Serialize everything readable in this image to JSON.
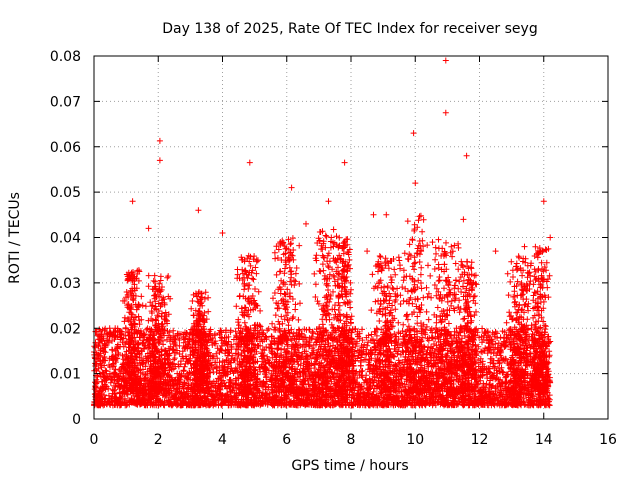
{
  "chart_data": {
    "type": "scatter",
    "title": "Day 138 of 2025, Rate Of TEC Index for receiver seyg",
    "xlabel": "GPS time / hours",
    "ylabel": "ROTI / TECUs",
    "xlim": [
      0,
      16
    ],
    "ylim": [
      0,
      0.08
    ],
    "x_ticks": [
      0,
      2,
      4,
      6,
      8,
      10,
      12,
      14,
      16
    ],
    "y_ticks": [
      0,
      0.01,
      0.02,
      0.03,
      0.04,
      0.05,
      0.06,
      0.07,
      0.08
    ],
    "x_tick_labels": [
      "0",
      "2",
      "4",
      "6",
      "8",
      "10",
      "12",
      "14",
      "16"
    ],
    "y_tick_labels": [
      "0",
      "0.01",
      "0.02",
      "0.03",
      "0.04",
      "0.05",
      "0.06",
      "0.07",
      "0.08"
    ],
    "grid": true,
    "marker": "+",
    "color": "#ff0000",
    "data_coverage_hours": [
      0,
      14.2
    ],
    "baseline_range": [
      0.003,
      0.02
    ],
    "notable_points": [
      {
        "x": 10.95,
        "y": 0.079
      },
      {
        "x": 10.95,
        "y": 0.0675
      },
      {
        "x": 9.95,
        "y": 0.063
      },
      {
        "x": 2.05,
        "y": 0.0613
      },
      {
        "x": 2.05,
        "y": 0.057
      },
      {
        "x": 11.6,
        "y": 0.058
      },
      {
        "x": 4.85,
        "y": 0.0565
      },
      {
        "x": 7.8,
        "y": 0.0565
      },
      {
        "x": 6.15,
        "y": 0.051
      },
      {
        "x": 10.0,
        "y": 0.052
      },
      {
        "x": 1.2,
        "y": 0.048
      },
      {
        "x": 7.3,
        "y": 0.048
      },
      {
        "x": 14.0,
        "y": 0.048
      },
      {
        "x": 3.25,
        "y": 0.046
      },
      {
        "x": 8.7,
        "y": 0.045
      },
      {
        "x": 9.1,
        "y": 0.045
      },
      {
        "x": 11.5,
        "y": 0.044
      },
      {
        "x": 6.6,
        "y": 0.043
      },
      {
        "x": 1.7,
        "y": 0.042
      },
      {
        "x": 4.0,
        "y": 0.041
      },
      {
        "x": 12.5,
        "y": 0.037
      },
      {
        "x": 8.5,
        "y": 0.037
      },
      {
        "x": 13.4,
        "y": 0.038
      },
      {
        "x": 14.2,
        "y": 0.04
      }
    ],
    "bursts": [
      {
        "center": 1.2,
        "width": 0.35,
        "peak": 0.033
      },
      {
        "center": 2.0,
        "width": 0.4,
        "peak": 0.032
      },
      {
        "center": 3.3,
        "width": 0.3,
        "peak": 0.028
      },
      {
        "center": 4.8,
        "width": 0.4,
        "peak": 0.036
      },
      {
        "center": 6.0,
        "width": 0.5,
        "peak": 0.04
      },
      {
        "center": 7.3,
        "width": 0.5,
        "peak": 0.042
      },
      {
        "center": 7.8,
        "width": 0.35,
        "peak": 0.04
      },
      {
        "center": 9.1,
        "width": 0.5,
        "peak": 0.036
      },
      {
        "center": 10.0,
        "width": 0.55,
        "peak": 0.045
      },
      {
        "center": 10.9,
        "width": 0.5,
        "peak": 0.04
      },
      {
        "center": 11.6,
        "width": 0.4,
        "peak": 0.035
      },
      {
        "center": 13.3,
        "width": 0.5,
        "peak": 0.036
      },
      {
        "center": 13.9,
        "width": 0.3,
        "peak": 0.038
      }
    ]
  }
}
